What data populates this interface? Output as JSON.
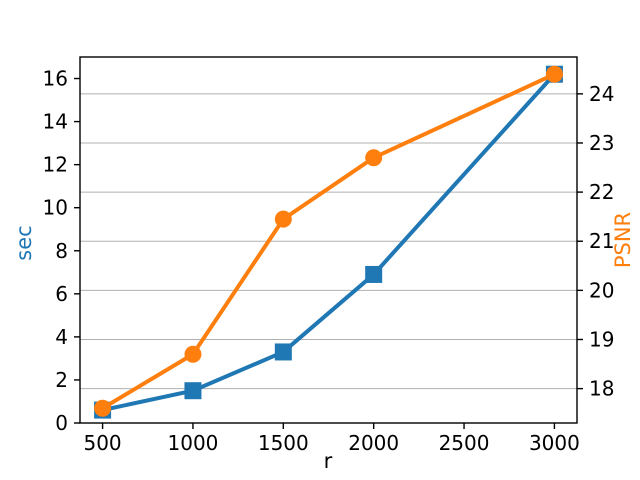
{
  "chart_data": {
    "type": "line",
    "title": "",
    "xlabel": "r",
    "ylabel_left": "sec",
    "ylabel_right": "PSNR",
    "x": [
      500,
      1000,
      1500,
      2000,
      3000
    ],
    "series": [
      {
        "name": "sec",
        "axis": "left",
        "color": "#1f77b4",
        "marker": "square",
        "values": [
          0.6,
          1.5,
          3.3,
          6.9,
          16.2
        ]
      },
      {
        "name": "PSNR",
        "axis": "right",
        "color": "#ff7f0e",
        "marker": "circle",
        "values": [
          17.6,
          18.7,
          21.45,
          22.7,
          24.4
        ]
      }
    ],
    "x_ticks": [
      500,
      1000,
      1500,
      2000,
      2500,
      3000
    ],
    "y_ticks_left": [
      0,
      2,
      4,
      6,
      8,
      10,
      12,
      14,
      16
    ],
    "y_ticks_right": [
      18,
      19,
      20,
      21,
      22,
      23,
      24
    ],
    "xlim": [
      375,
      3125
    ],
    "ylim_left": [
      0,
      17
    ],
    "ylim_right": [
      17.3,
      24.75
    ],
    "grid": "horizontal (right-axis ticks)",
    "grid_color": "#b0b0b0",
    "axis_color": "#000000",
    "axis_label_colors": {
      "left": "#1f77b4",
      "right": "#ff7f0e"
    },
    "legend": "none"
  }
}
